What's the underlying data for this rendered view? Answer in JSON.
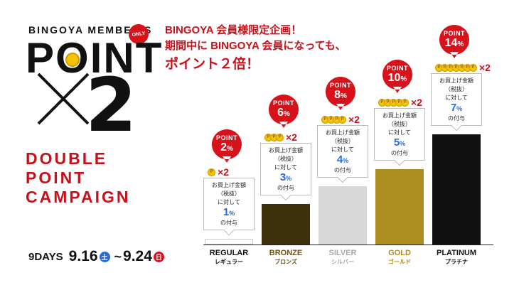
{
  "header": {
    "member_title": "BINGOYA MEMBER'S",
    "only_badge": "ONLY",
    "point_word": "POINT",
    "multiplier": "2",
    "campaign_lines": [
      "DOUBLE",
      "POINT",
      "CAMPAIGN"
    ]
  },
  "dates": {
    "days_label": "9DAYS",
    "start_date": "9.16",
    "start_day": "土",
    "tilde": "~",
    "end_date": "9.24",
    "end_day": "日"
  },
  "headline": {
    "line1": "BINGOYA 会員様限定企画！",
    "line2": "期間中に BINGOYA 会員になっても、",
    "line3": "ポイント２倍！"
  },
  "colors": {
    "red": "#c8101a",
    "blue": "#2a6ad9",
    "gold_coin": "#f2c500"
  },
  "chart_data": {
    "type": "bar",
    "categories": [
      "REGULAR",
      "BRONZE",
      "SILVER",
      "GOLD",
      "PLATINUM"
    ],
    "categories_ja": [
      "レギュラー",
      "ブロンズ",
      "シルバー",
      "ゴールド",
      "プラチナ"
    ],
    "values": [
      1,
      3,
      4,
      5,
      7
    ],
    "campaign_values": [
      2,
      6,
      8,
      10,
      14
    ],
    "unit": "%",
    "coin_counts": [
      1,
      3,
      4,
      5,
      7
    ],
    "multiplier_label": "×2",
    "balloon_label": "POINT",
    "callout_lines": [
      "お買上げ金額",
      "（税抜）",
      "に対して"
    ],
    "callout_suffix": "の付与",
    "bar_colors": [
      "#ffffff",
      "#3e300d",
      "#d8d8d8",
      "#ab8d20",
      "#111111"
    ],
    "label_colors": [
      "#111111",
      "#6b5315",
      "#a8a8a8",
      "#b08f1c",
      "#111111"
    ]
  }
}
